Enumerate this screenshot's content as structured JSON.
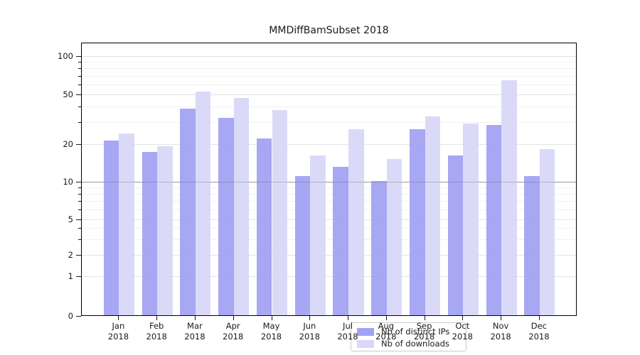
{
  "chart_data": {
    "type": "bar",
    "title": "MMDiffBamSubset 2018",
    "categories": [
      "Jan 2018",
      "Feb 2018",
      "Mar 2018",
      "Apr 2018",
      "May 2018",
      "Jun 2018",
      "Jul 2018",
      "Aug 2018",
      "Sep 2018",
      "Oct 2018",
      "Nov 2018",
      "Dec 2018"
    ],
    "series": [
      {
        "name": "Nb of distinct IPs",
        "color": "#a2a2f2",
        "values": [
          21,
          17,
          38,
          32,
          22,
          11,
          13,
          10,
          26,
          16,
          28,
          11
        ]
      },
      {
        "name": "Nb of downloads",
        "color": "#d8d8f8",
        "values": [
          24,
          19,
          52,
          46,
          37,
          16,
          26,
          15,
          33,
          29,
          64,
          18
        ]
      }
    ],
    "xlabel": "",
    "ylabel": "",
    "y_axis": {
      "scale": "symlog",
      "tick_values": [
        100,
        50,
        20,
        10,
        5,
        2,
        1,
        0
      ],
      "minor_gridlines": [
        3,
        4,
        6,
        7,
        8,
        9,
        30,
        40,
        60,
        70,
        80,
        90
      ],
      "emphasized_gridline": 10,
      "ylim": [
        0,
        130
      ]
    },
    "grid": true,
    "legend_position": "lower center",
    "colors": {
      "frame": "#000000",
      "major_grid": "#e3e3e3",
      "minor_grid": "#f1f1f1",
      "grid_10": "#b0b0b0",
      "text": "#1a1a1a",
      "legend_border": "#cccccc"
    }
  }
}
